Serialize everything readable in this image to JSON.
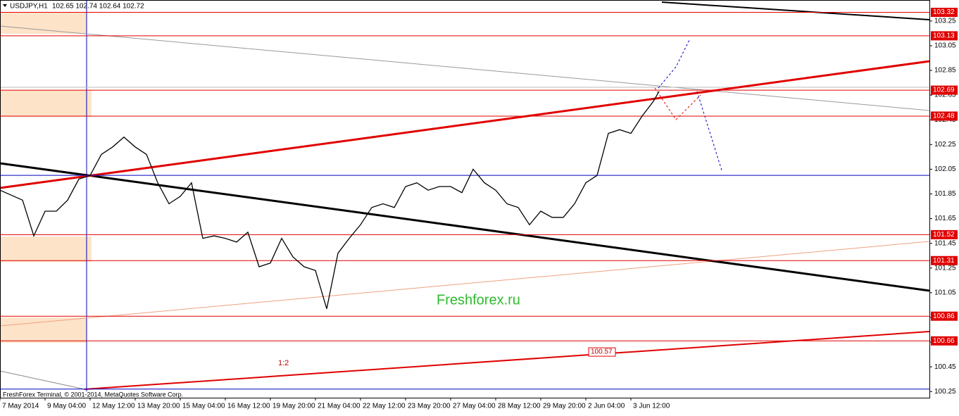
{
  "chart_data": {
    "type": "line",
    "title": "USDJPY,H1",
    "subtitle": "102.65 102.74 102.64 102.72",
    "footer": "FreshForex Terminal, © 2001-2014, MetaQuotes Software Corp.",
    "watermark": "Freshforex.ru",
    "annotation": "1:2",
    "price_label": 100.57,
    "color": "#000000",
    "level_color": "#e00000",
    "x": [
      0,
      16,
      24,
      32,
      40,
      48,
      56,
      64,
      72,
      80,
      88,
      96,
      104,
      112,
      120,
      128,
      136,
      144,
      152,
      160,
      168,
      176,
      184,
      192,
      200,
      208,
      216,
      224,
      232,
      240,
      248,
      256,
      264,
      272,
      280,
      288,
      296,
      304,
      312,
      320,
      328,
      336,
      344,
      352,
      360,
      368,
      376,
      384,
      392,
      400,
      408,
      416,
      424,
      432,
      440,
      448,
      456,
      464,
      468
    ],
    "values": [
      101.88,
      101.8,
      101.51,
      101.71,
      101.71,
      101.8,
      101.97,
      102.0,
      102.17,
      102.23,
      102.31,
      102.23,
      102.17,
      101.94,
      101.77,
      101.83,
      101.94,
      101.49,
      101.51,
      101.49,
      101.46,
      101.54,
      101.26,
      101.29,
      101.49,
      101.34,
      101.26,
      101.23,
      100.92,
      101.37,
      101.49,
      101.6,
      101.74,
      101.77,
      101.74,
      101.91,
      101.94,
      101.88,
      101.91,
      101.91,
      101.86,
      102.05,
      101.94,
      101.88,
      101.77,
      101.74,
      101.6,
      101.71,
      101.66,
      101.66,
      101.77,
      101.94,
      102.0,
      102.34,
      102.37,
      102.34,
      102.48,
      102.6,
      102.68
    ],
    "levels": [
      103.32,
      103.13,
      102.69,
      102.48,
      101.52,
      101.31,
      100.86,
      100.66
    ],
    "blue_levels": [
      102.0,
      100.27
    ],
    "xlim": [
      0,
      660
    ],
    "xticks": [
      {
        "value": 0,
        "label": "7 May 2014"
      },
      {
        "value": 32,
        "label": "9 May 04:00"
      },
      {
        "value": 64,
        "label": "12 May 12:00"
      },
      {
        "value": 96,
        "label": "13 May 20:00"
      },
      {
        "value": 128,
        "label": "15 May 04:00"
      },
      {
        "value": 160,
        "label": "16 May 12:00"
      },
      {
        "value": 192,
        "label": "19 May 20:00"
      },
      {
        "value": 224,
        "label": "21 May 04:00"
      },
      {
        "value": 256,
        "label": "22 May 12:00"
      },
      {
        "value": 288,
        "label": "23 May 20:00"
      },
      {
        "value": 320,
        "label": "27 May 04:00"
      },
      {
        "value": 352,
        "label": "28 May 12:00"
      },
      {
        "value": 384,
        "label": "29 May 20:00"
      },
      {
        "value": 416,
        "label": "2 Jun 04:00"
      },
      {
        "value": 448,
        "label": "3 Jun 12:00"
      }
    ],
    "ylim": [
      100.2,
      103.42
    ],
    "yticks": [
      103.25,
      103.05,
      102.85,
      102.65,
      102.45,
      102.25,
      102.05,
      101.85,
      101.65,
      101.45,
      101.25,
      101.05,
      100.85,
      100.65,
      100.45,
      100.25
    ]
  }
}
